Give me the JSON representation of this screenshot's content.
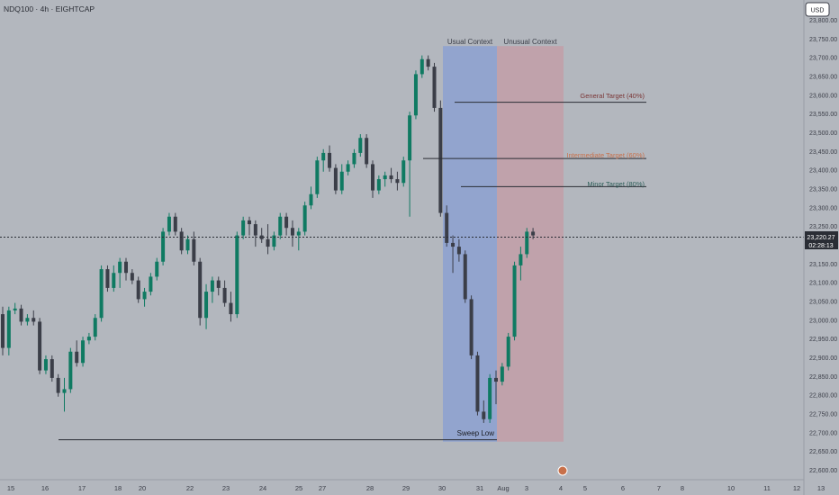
{
  "header": {
    "symbol_line": "NDQ100 · 4h · EIGHTCAP",
    "currency": "USD"
  },
  "price_scale": {
    "current_price": "23,220.27",
    "countdown": "02:28:13"
  },
  "zones": {
    "usual": "Usual Context",
    "unusual": "Unusual Context"
  },
  "targets": {
    "general": "General Target (40%)",
    "intermediate": "Intermediate Target (60%)",
    "minor": "Minor Target (80%)"
  },
  "sweep_label": "Sweep Low",
  "colors": {
    "background": "#b3b7be",
    "bull": "#0f7a62",
    "bear": "#3b3e48",
    "usual_zone": "#8ea2cf",
    "unusual_zone": "#c1a0a8",
    "general_text": "#7a3535",
    "intermediate_text": "#c8704a",
    "minor_text": "#2f5f5a",
    "line": "#2a2d35"
  },
  "chart_data": {
    "type": "candlestick",
    "y_axis": {
      "min": 22600,
      "max": 23800,
      "ticks": [
        "23,800.00",
        "23,750.00",
        "23,700.00",
        "23,650.00",
        "23,600.00",
        "23,550.00",
        "23,500.00",
        "23,450.00",
        "23,400.00",
        "23,350.00",
        "23,300.00",
        "23,250.00",
        "23,200.00",
        "23,150.00",
        "23,100.00",
        "23,050.00",
        "23,000.00",
        "22,950.00",
        "22,900.00",
        "22,850.00",
        "22,800.00",
        "22,750.00",
        "22,700.00",
        "22,650.00",
        "22,600.00"
      ]
    },
    "x_axis": {
      "labels": [
        "15",
        "16",
        "17",
        "18",
        "20",
        "22",
        "23",
        "24",
        "25",
        "27",
        "28",
        "29",
        "30",
        "31",
        "Aug",
        "3",
        "4",
        "5",
        "6",
        "7",
        "8",
        "10",
        "11",
        "12",
        "13",
        "14"
      ]
    },
    "current_price": 23220.27,
    "levels": {
      "general_target": 23580,
      "intermediate_target": 23430,
      "minor_target": 23355,
      "sweep_low": 22680
    },
    "zone_tops": 23730,
    "zone_bottom": 22675,
    "candles": [
      [
        23015,
        23035,
        22905,
        22925
      ],
      [
        22925,
        23035,
        22905,
        23025
      ],
      [
        23025,
        23045,
        23015,
        23030
      ],
      [
        23030,
        23040,
        22985,
        22995
      ],
      [
        22995,
        23015,
        22985,
        23005
      ],
      [
        23005,
        23025,
        22985,
        22995
      ],
      [
        22995,
        23005,
        22855,
        22865
      ],
      [
        22865,
        22905,
        22855,
        22895
      ],
      [
        22895,
        22905,
        22835,
        22845
      ],
      [
        22845,
        22855,
        22795,
        22805
      ],
      [
        22805,
        22845,
        22755,
        22815
      ],
      [
        22815,
        22925,
        22805,
        22915
      ],
      [
        22915,
        22945,
        22875,
        22885
      ],
      [
        22885,
        22955,
        22875,
        22945
      ],
      [
        22945,
        22965,
        22935,
        22955
      ],
      [
        22955,
        23015,
        22945,
        23005
      ],
      [
        23005,
        23145,
        22995,
        23135
      ],
      [
        23135,
        23145,
        23075,
        23085
      ],
      [
        23085,
        23145,
        23075,
        23125
      ],
      [
        23125,
        23165,
        23085,
        23155
      ],
      [
        23155,
        23165,
        23105,
        23125
      ],
      [
        23125,
        23135,
        23095,
        23105
      ],
      [
        23105,
        23115,
        23045,
        23055
      ],
      [
        23055,
        23085,
        23035,
        23075
      ],
      [
        23075,
        23125,
        23065,
        23115
      ],
      [
        23115,
        23165,
        23105,
        23155
      ],
      [
        23155,
        23245,
        23145,
        23235
      ],
      [
        23235,
        23285,
        23225,
        23275
      ],
      [
        23275,
        23285,
        23225,
        23235
      ],
      [
        23235,
        23245,
        23175,
        23185
      ],
      [
        23185,
        23225,
        23175,
        23215
      ],
      [
        23215,
        23235,
        23145,
        23155
      ],
      [
        23155,
        23165,
        22985,
        23005
      ],
      [
        23005,
        23095,
        22975,
        23075
      ],
      [
        23075,
        23115,
        23045,
        23105
      ],
      [
        23105,
        23115,
        23065,
        23085
      ],
      [
        23085,
        23105,
        23035,
        23045
      ],
      [
        23045,
        23075,
        22995,
        23015
      ],
      [
        23015,
        23235,
        23005,
        23225
      ],
      [
        23225,
        23275,
        23215,
        23265
      ],
      [
        23265,
        23275,
        23225,
        23255
      ],
      [
        23255,
        23265,
        23195,
        23225
      ],
      [
        23225,
        23245,
        23205,
        23215
      ],
      [
        23215,
        23255,
        23175,
        23195
      ],
      [
        23195,
        23235,
        23185,
        23225
      ],
      [
        23225,
        23285,
        23215,
        23275
      ],
      [
        23275,
        23285,
        23225,
        23245
      ],
      [
        23245,
        23265,
        23195,
        23225
      ],
      [
        23225,
        23245,
        23185,
        23235
      ],
      [
        23235,
        23315,
        23225,
        23305
      ],
      [
        23305,
        23355,
        23295,
        23335
      ],
      [
        23335,
        23435,
        23325,
        23425
      ],
      [
        23425,
        23455,
        23395,
        23445
      ],
      [
        23445,
        23465,
        23395,
        23405
      ],
      [
        23405,
        23415,
        23335,
        23345
      ],
      [
        23345,
        23415,
        23335,
        23395
      ],
      [
        23395,
        23425,
        23385,
        23415
      ],
      [
        23415,
        23455,
        23405,
        23445
      ],
      [
        23445,
        23495,
        23435,
        23485
      ],
      [
        23485,
        23495,
        23405,
        23415
      ],
      [
        23415,
        23425,
        23325,
        23345
      ],
      [
        23345,
        23385,
        23335,
        23375
      ],
      [
        23375,
        23395,
        23355,
        23385
      ],
      [
        23385,
        23405,
        23365,
        23375
      ],
      [
        23375,
        23395,
        23345,
        23365
      ],
      [
        23365,
        23435,
        23355,
        23425
      ],
      [
        23425,
        23555,
        23275,
        23545
      ],
      [
        23545,
        23665,
        23535,
        23655
      ],
      [
        23655,
        23705,
        23645,
        23695
      ],
      [
        23695,
        23705,
        23665,
        23675
      ],
      [
        23675,
        23685,
        23555,
        23565
      ],
      [
        23565,
        23585,
        23275,
        23285
      ],
      [
        23285,
        23305,
        23195,
        23205
      ],
      [
        23205,
        23225,
        23125,
        23195
      ],
      [
        23195,
        23215,
        23155,
        23175
      ],
      [
        23175,
        23185,
        23045,
        23055
      ],
      [
        23055,
        23065,
        22895,
        22905
      ],
      [
        22905,
        22915,
        22745,
        22755
      ],
      [
        22755,
        22785,
        22725,
        22735
      ],
      [
        22735,
        22855,
        22725,
        22845
      ],
      [
        22845,
        22865,
        22775,
        22835
      ],
      [
        22835,
        22885,
        22825,
        22875
      ],
      [
        22875,
        22965,
        22865,
        22955
      ],
      [
        22955,
        23155,
        22945,
        23145
      ],
      [
        23145,
        23195,
        23105,
        23175
      ],
      [
        23175,
        23245,
        23165,
        23235
      ],
      [
        23235,
        23245,
        23215,
        23225
      ]
    ]
  }
}
